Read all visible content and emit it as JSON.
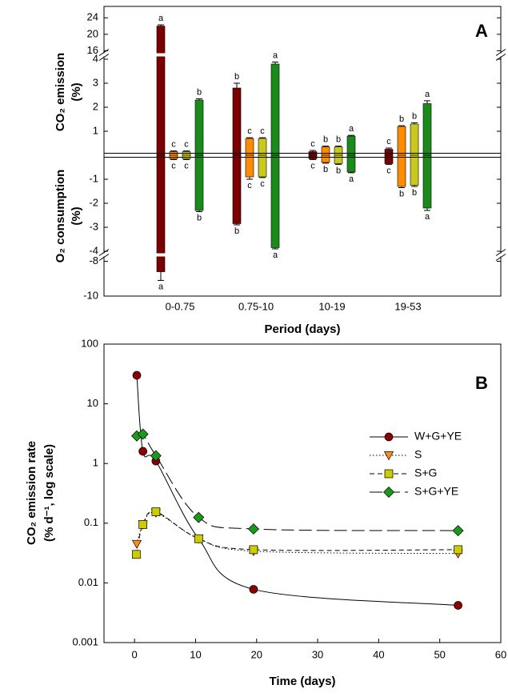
{
  "chart_data": [
    {
      "type": "bar",
      "panel_label": "A",
      "ylabel_upper": [
        "CO₂ emission",
        "(%)"
      ],
      "ylabel_lower": [
        "O₂ consumption",
        "(%)"
      ],
      "xlabel": "Period (days)",
      "categories": [
        "0-0.75",
        "0.75-10",
        "10-19",
        "19-53"
      ],
      "ylim": [
        -10,
        26
      ],
      "y_segments": [
        [
          -10,
          -7.7
        ],
        [
          -4.1,
          4.1
        ],
        [
          15.5,
          26
        ]
      ],
      "yticks": [
        -10,
        -8,
        -4,
        -3,
        -2,
        -1,
        1,
        2,
        3,
        4,
        16,
        20,
        24
      ],
      "series": [
        {
          "color": "#7b0000",
          "values": [
            22,
            2.8,
            0.15,
            0.25
          ],
          "pos_errors": [
            0.3,
            0.2,
            0.05,
            0.05
          ],
          "pos_letters": [
            "a",
            "b",
            "c",
            "c"
          ],
          "neg_values": [
            -8.6,
            -2.85,
            -0.15,
            -0.35
          ],
          "neg_errors": [
            0.5,
            0.05,
            0.03,
            0.03
          ],
          "neg_letters": [
            "a",
            "b",
            "c",
            "c"
          ]
        },
        {
          "color": "#ff8c00",
          "values": [
            0.15,
            0.7,
            0.35,
            1.2
          ],
          "pos_errors": [
            0.03,
            0.03,
            0.03,
            0.03
          ],
          "pos_letters": [
            "c",
            "c",
            "b",
            "b"
          ],
          "neg_values": [
            -0.15,
            -0.9,
            -0.3,
            -1.3
          ],
          "neg_errors": [
            0.03,
            0.1,
            0.03,
            0.05
          ],
          "neg_letters": [
            "c",
            "c",
            "b",
            "b"
          ]
        },
        {
          "color": "#c8c81e",
          "values": [
            0.15,
            0.7,
            0.35,
            1.3
          ],
          "pos_errors": [
            0.03,
            0.03,
            0.03,
            0.05
          ],
          "pos_letters": [
            "c",
            "c",
            "b",
            "b"
          ],
          "neg_values": [
            -0.15,
            -0.9,
            -0.35,
            -1.25
          ],
          "neg_errors": [
            0.03,
            0.03,
            0.03,
            0.05
          ],
          "neg_letters": [
            "c",
            "c",
            "b",
            "b"
          ]
        },
        {
          "color": "#1a8a1a",
          "values": [
            2.3,
            3.8,
            0.8,
            2.15
          ],
          "pos_errors": [
            0.05,
            0.08,
            0.03,
            0.12
          ],
          "pos_letters": [
            "b",
            "a",
            "a",
            "a"
          ],
          "neg_values": [
            -2.3,
            -3.85,
            -0.7,
            -2.2
          ],
          "neg_errors": [
            0.05,
            0.05,
            0.03,
            0.1
          ],
          "neg_letters": [
            "b",
            "a",
            "a",
            "a"
          ]
        }
      ]
    },
    {
      "type": "line",
      "panel_label": "B",
      "xlabel": "Time (days)",
      "ylabel": [
        "CO₂ emission rate",
        "(% d⁻¹, log scale)"
      ],
      "xlim": [
        -5,
        60
      ],
      "xticks": [
        0,
        10,
        20,
        30,
        40,
        50,
        60
      ],
      "ylim": [
        0.001,
        100
      ],
      "yticks": [
        0.001,
        0.01,
        0.1,
        1,
        10,
        100
      ],
      "log_scale": true,
      "legend": "upper right",
      "series": [
        {
          "name": "W+G+YE",
          "color": "#8b0000",
          "marker": "circle",
          "linestyle": "solid",
          "x": [
            0.375,
            1.375,
            3.5,
            10.5,
            19.5,
            53
          ],
          "values": [
            30,
            1.6,
            1.1,
            0.055,
            0.0078,
            0.0042
          ]
        },
        {
          "name": "S",
          "color": "#ff8c1a",
          "marker": "triangle-down",
          "linestyle": "dotted",
          "x": [
            0.375,
            1.375,
            3.5,
            10.5,
            19.5,
            53
          ],
          "values": [
            0.045,
            0.095,
            0.15,
            0.055,
            0.034,
            0.031
          ]
        },
        {
          "name": "S+G",
          "color": "#cccc00",
          "marker": "square",
          "linestyle": "dashed",
          "x": [
            0.3,
            1.375,
            3.5,
            10.5,
            19.5,
            53
          ],
          "values": [
            0.03,
            0.095,
            0.155,
            0.055,
            0.036,
            0.036
          ]
        },
        {
          "name": "S+G+YE",
          "color": "#1a9a1a",
          "marker": "diamond",
          "linestyle": "long-dashed",
          "x": [
            0.375,
            1.375,
            3.5,
            10.5,
            19.5,
            53
          ],
          "values": [
            2.9,
            3.1,
            1.35,
            0.125,
            0.08,
            0.075
          ]
        }
      ]
    }
  ]
}
